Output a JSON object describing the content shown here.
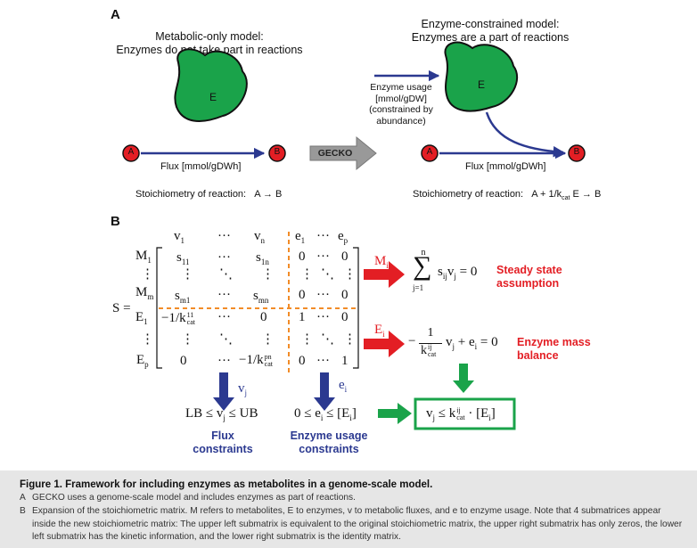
{
  "panel_a": {
    "letter": "A",
    "left_title_1": "Metabolic-only model:",
    "left_title_2": "Enzymes do not take part in reactions",
    "right_title_1": "Enzyme-constrained model:",
    "right_title_2": "Enzymes are a part of reactions",
    "enzyme_label": "E",
    "node_a": "A",
    "node_b": "B",
    "flux_label": "Flux [mmol/gDWh]",
    "gecko_label": "GECKO",
    "usage_1": "Enzyme usage",
    "usage_2": "[mmol/gDW]",
    "usage_3": "(constrained by",
    "usage_4": "abundance)",
    "stoich_label": "Stoichiometry of reaction:",
    "left_reaction": "A → B",
    "right_reaction_a": "A + 1/k",
    "right_reaction_sub": "cat",
    "right_reaction_b": " E → B",
    "colors": {
      "enzyme_fill": "#1aa34a",
      "node_fill": "#e31e24",
      "arrow": "#2b3990",
      "gecko_arrow": "#999999"
    }
  },
  "panel_b": {
    "letter": "B",
    "S": "S =",
    "col_v1": "v",
    "col_v1_sub": "1",
    "col_vn": "v",
    "col_vn_sub": "n",
    "col_e1": "e",
    "col_e1_sub": "1",
    "col_ep": "e",
    "col_ep_sub": "p",
    "dots": "···",
    "vdots": "⋮",
    "ddots": "⋱",
    "row_M1": "M",
    "row_M1_sub": "1",
    "row_Mm": "M",
    "row_Mm_sub": "m",
    "row_E1": "E",
    "row_E1_sub": "1",
    "row_Ep": "E",
    "row_Ep_sub": "p",
    "s11": "s",
    "s11_sub": "11",
    "s1n": "s",
    "s1n_sub": "1n",
    "sm1": "s",
    "sm1_sub": "m1",
    "smn": "s",
    "smn_sub": "mn",
    "zero": "0",
    "one": "1",
    "kcat_neg": "−1/k",
    "kcat_sup_11": "11",
    "kcat_sup_pn": "pn",
    "kcat_sub": "cat",
    "arrow_Mi": "M",
    "arrow_Mi_sub": "i",
    "arrow_Ei": "E",
    "arrow_Ei_sub": "i",
    "sum_top": "n",
    "sum_bottom": "j=1",
    "sum_sym": "∑",
    "sum_expr": "s",
    "sum_expr_sub": "ij",
    "sum_expr_v": "v",
    "sum_expr_v_sub": "j",
    "sum_eq": " = 0",
    "steady_1": "Steady state",
    "steady_2": "assumption",
    "frac_num": "1",
    "frac_den": "k",
    "frac_den_sup": "ij",
    "frac_den_sub": "cat",
    "mass_expr": "v",
    "mass_expr_sub": "j",
    "mass_plus": " + e",
    "mass_plus_sub": "i",
    "mass_eq": " = 0",
    "mass_1": "Enzyme mass",
    "mass_2": "balance",
    "vj_label": "v",
    "vj_sub": "j",
    "ei_label": "e",
    "ei_sub": "i",
    "flux_constr": "LB ≤ v",
    "flux_constr_sub": "j",
    "flux_constr_b": " ≤ UB",
    "usage_constr": "0 ≤ e",
    "usage_constr_sub": "i",
    "usage_constr_b": " ≤ [E",
    "usage_constr_sub2": "i",
    "usage_constr_c": "]",
    "flux_name_1": "Flux",
    "flux_name_2": "constraints",
    "usage_name_1": "Enzyme usage",
    "usage_name_2": "constraints",
    "final_a": "v",
    "final_a_sub": "j",
    "final_b": " ≤ k",
    "final_sup": "ij",
    "final_sub": "cat",
    "final_c": " · [E",
    "final_c_sub": "i",
    "final_d": "]",
    "colors": {
      "red_arrow": "#e31e24",
      "blue_arrow": "#2b3990",
      "green": "#1aa34a",
      "dash": "#f28c28"
    }
  },
  "caption": {
    "title": "Figure 1.  Framework for including enzymes as metabolites in a genome-scale model.",
    "item_a_key": "A",
    "item_a": "GECKO uses a genome-scale model and includes enzymes as part of reactions.",
    "item_b_key": "B",
    "item_b": "Expansion of the stoichiometric matrix. M refers to metabolites, E to enzymes, v to metabolic fluxes, and e to enzyme usage. Note that 4 submatrices appear inside the new stoichiometric matrix: The upper left submatrix is equivalent to the original stoichiometric matrix, the upper right submatrix has only zeros, the lower left submatrix has the kinetic information, and the lower right submatrix is the identity matrix."
  }
}
